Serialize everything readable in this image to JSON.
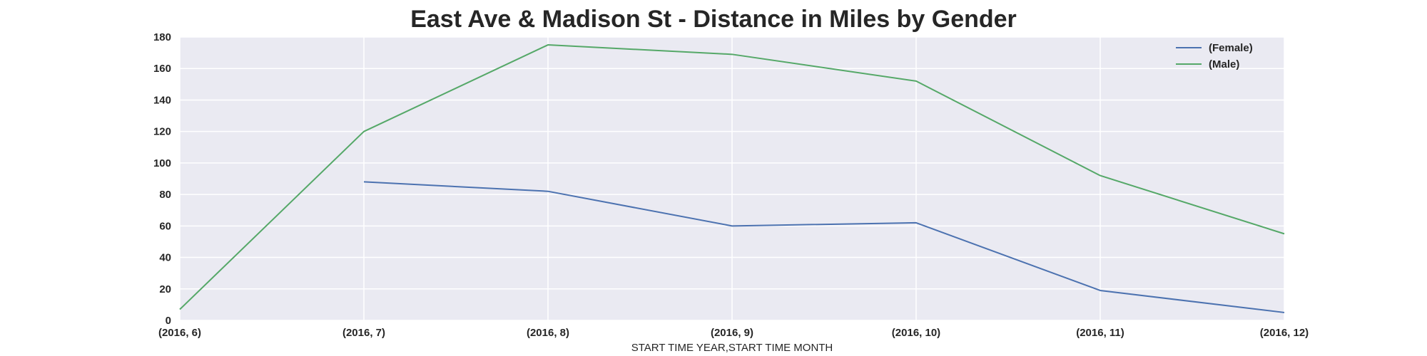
{
  "chart_data": {
    "type": "line",
    "title": "East Ave & Madison St - Distance in Miles by Gender",
    "xlabel": "START TIME YEAR,START TIME MONTH",
    "ylabel": "",
    "categories": [
      "(2016, 6)",
      "(2016, 7)",
      "(2016, 8)",
      "(2016, 9)",
      "(2016, 10)",
      "(2016, 11)",
      "(2016, 12)"
    ],
    "yticks": [
      0,
      20,
      40,
      60,
      80,
      100,
      120,
      140,
      160,
      180
    ],
    "ylim": [
      0,
      180
    ],
    "grid": true,
    "legend_position": "top-right",
    "series": [
      {
        "name": "(Female)",
        "color": "#4c72b0",
        "values": [
          null,
          88,
          82,
          60,
          62,
          19,
          5
        ]
      },
      {
        "name": "(Male)",
        "color": "#55a868",
        "values": [
          7,
          120,
          175,
          169,
          152,
          92,
          55
        ]
      }
    ]
  },
  "colors": {
    "plot_background": "#eaeaf2",
    "grid": "#ffffff"
  }
}
